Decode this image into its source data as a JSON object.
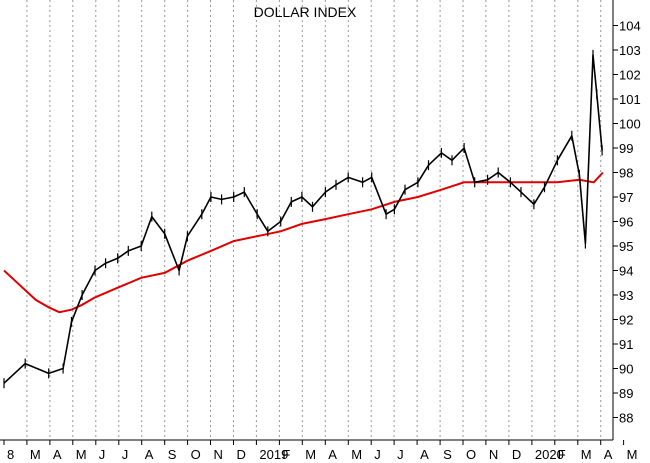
{
  "chart_data": {
    "type": "line",
    "title": "DOLLAR INDEX",
    "xlabel": "",
    "ylabel": "",
    "ylim": [
      87.2,
      104.3
    ],
    "y_ticks": [
      88,
      89,
      90,
      91,
      92,
      93,
      94,
      95,
      96,
      97,
      98,
      99,
      100,
      101,
      102,
      103,
      104
    ],
    "x_tick_labels": [
      "8",
      "M",
      "A",
      "M",
      "J",
      "J",
      "A",
      "S",
      "O",
      "N",
      "D",
      "2019",
      "F",
      "M",
      "A",
      "M",
      "J",
      "J",
      "A",
      "S",
      "O",
      "N",
      "D",
      "2020",
      "F",
      "M",
      "A",
      "M"
    ],
    "grid": "vertical dotted",
    "colors": {
      "price": "#000000",
      "moving_average": "#e00000",
      "grid": "#999999"
    },
    "series": [
      {
        "style": "daily price bars",
        "x": [
          "2018-02-01",
          "2018-03-01",
          "2018-04-01",
          "2018-04-20",
          "2018-05-01",
          "2018-05-15",
          "2018-06-01",
          "2018-06-15",
          "2018-07-01",
          "2018-07-15",
          "2018-08-01",
          "2018-08-15",
          "2018-09-01",
          "2018-09-20",
          "2018-10-01",
          "2018-10-20",
          "2018-11-01",
          "2018-11-15",
          "2018-12-01",
          "2018-12-15",
          "2019-01-01",
          "2019-01-15",
          "2019-02-01",
          "2019-02-15",
          "2019-03-01",
          "2019-03-15",
          "2019-04-01",
          "2019-04-15",
          "2019-05-01",
          "2019-05-20",
          "2019-06-01",
          "2019-06-20",
          "2019-07-01",
          "2019-07-15",
          "2019-08-01",
          "2019-08-15",
          "2019-09-01",
          "2019-09-15",
          "2019-10-01",
          "2019-10-15",
          "2019-11-01",
          "2019-11-15",
          "2019-12-01",
          "2019-12-15",
          "2020-01-01",
          "2020-01-15",
          "2020-02-01",
          "2020-02-20",
          "2020-03-01",
          "2020-03-09",
          "2020-03-19",
          "2020-03-24",
          "2020-03-31"
        ],
        "values": [
          89.4,
          90.2,
          89.8,
          90.0,
          91.9,
          93.0,
          94.0,
          94.3,
          94.5,
          94.8,
          95.0,
          96.2,
          95.5,
          94.0,
          95.4,
          96.3,
          97.0,
          96.9,
          97.0,
          97.2,
          96.3,
          95.6,
          96.0,
          96.8,
          97.0,
          96.6,
          97.2,
          97.5,
          97.8,
          97.6,
          97.8,
          96.3,
          96.5,
          97.3,
          97.6,
          98.3,
          98.8,
          98.5,
          99.0,
          97.6,
          97.7,
          98.0,
          97.6,
          97.2,
          96.7,
          97.4,
          98.5,
          99.5,
          97.9,
          95.1,
          102.8,
          101.2,
          98.9
        ]
      },
      {
        "style": "moving average",
        "x": [
          "2018-02-01",
          "2018-02-15",
          "2018-03-01",
          "2018-03-15",
          "2018-04-01",
          "2018-04-15",
          "2018-05-01",
          "2018-05-15",
          "2018-06-01",
          "2018-07-01",
          "2018-08-01",
          "2018-09-01",
          "2018-10-01",
          "2018-11-01",
          "2018-12-01",
          "2019-01-01",
          "2019-02-01",
          "2019-03-01",
          "2019-04-01",
          "2019-05-01",
          "2019-06-01",
          "2019-07-01",
          "2019-08-01",
          "2019-09-01",
          "2019-10-01",
          "2019-11-01",
          "2019-12-01",
          "2020-01-01",
          "2020-02-01",
          "2020-03-01",
          "2020-03-20",
          "2020-04-01"
        ],
        "values": [
          94.0,
          93.6,
          93.2,
          92.8,
          92.5,
          92.3,
          92.4,
          92.6,
          92.9,
          93.3,
          93.7,
          93.9,
          94.4,
          94.8,
          95.2,
          95.4,
          95.6,
          95.9,
          96.1,
          96.3,
          96.5,
          96.8,
          97.0,
          97.3,
          97.6,
          97.6,
          97.6,
          97.6,
          97.6,
          97.7,
          97.6,
          98.0
        ]
      }
    ]
  }
}
